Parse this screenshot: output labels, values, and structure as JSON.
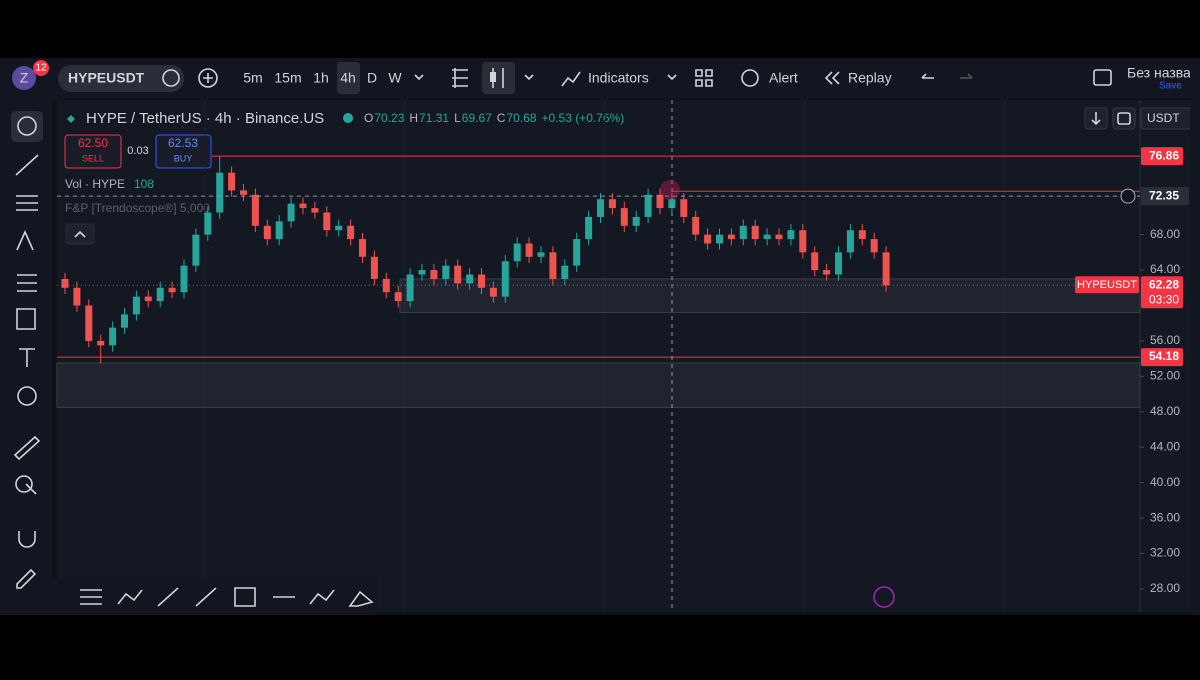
{
  "toolbar": {
    "avatar": "Z",
    "badge": "12",
    "symbol": "HYPEUSDT",
    "intervals": [
      "5m",
      "15m",
      "1h",
      "4h",
      "D",
      "W"
    ],
    "indicators": "Indicators",
    "alert": "Alert",
    "replay": "Replay",
    "layout_name": "Без названи",
    "save": "Save"
  },
  "legend": {
    "title": "HYPE / TetherUS · 4h · Binance.US",
    "ohlc": [
      {
        "key": "O",
        "value": "70.23"
      },
      {
        "key": "H",
        "value": "71.31"
      },
      {
        "key": "L",
        "value": "69.67"
      },
      {
        "key": "C",
        "value": "70.68"
      }
    ],
    "change": "+0.53 (+0.76%)",
    "sell_price": "62.50",
    "sell": "SELL",
    "spread": "0.03",
    "buy_price": "62.53",
    "buy": "BUY",
    "volume_label": "Vol · HYPE",
    "volume": "108",
    "indicator": "F&P [Trendoscope®] 5,000"
  },
  "currency": "USDT",
  "chart_data": {
    "type": "candlestick",
    "ylim": [
      25.4,
      83.2
    ],
    "yticks": [
      {
        "value": 28,
        "label": "28.00"
      },
      {
        "value": 32,
        "label": "32.00"
      },
      {
        "value": 36,
        "label": "36.00"
      },
      {
        "value": 40,
        "label": "40.00"
      },
      {
        "value": 44,
        "label": "44.00"
      },
      {
        "value": 48,
        "label": "48.00"
      },
      {
        "value": 52,
        "label": "52.00"
      },
      {
        "value": 56,
        "label": "56.00"
      },
      {
        "value": 64,
        "label": "64.00"
      },
      {
        "value": 68,
        "label": "68.00"
      }
    ],
    "up_color": "#26a69a",
    "down_color": "#ef5350",
    "open": [
      63,
      62,
      60,
      56,
      55.5,
      57.5,
      59,
      61,
      60.5,
      62,
      61.5,
      64.5,
      68,
      70.5,
      75,
      73,
      72.5,
      69,
      67.5,
      69.5,
      71.5,
      71,
      70.5,
      68.5,
      69,
      67.5,
      65.5,
      63,
      61.5,
      60.5,
      63.5,
      64,
      63,
      64.5,
      62.5,
      63.5,
      62,
      61,
      65,
      67,
      65.5,
      66,
      63,
      64.5,
      67.5,
      70,
      72,
      71,
      69,
      70,
      72.5,
      71,
      72,
      70,
      68,
      67,
      68,
      67.5,
      69,
      67.5,
      68,
      67.5,
      68.5,
      66,
      64,
      63.5,
      66,
      68.5,
      67.5,
      66
    ],
    "high": [
      63.7,
      62.7,
      60.7,
      56.7,
      58.2,
      59.7,
      61.7,
      61.7,
      62.7,
      62.7,
      65.2,
      68.7,
      71.2,
      76.86,
      75.7,
      73.7,
      73.2,
      69.7,
      70.2,
      72.2,
      72.2,
      71.7,
      71.2,
      69.7,
      69.7,
      68.2,
      66.2,
      63.7,
      62.2,
      64.2,
      64.7,
      64.7,
      65.2,
      65.2,
      64.2,
      64.2,
      62.7,
      65.7,
      67.7,
      67.7,
      66.7,
      66.7,
      65.2,
      68.2,
      70.7,
      72.7,
      72.7,
      71.7,
      70.7,
      73.2,
      73.2,
      72.7,
      72.7,
      70.7,
      68.7,
      68.7,
      68.7,
      69.7,
      69.7,
      68.7,
      68.7,
      69.2,
      69.2,
      66.7,
      64.7,
      66.7,
      69.2,
      69.2,
      68.2,
      66.7
    ],
    "low": [
      61.3,
      59.3,
      55.3,
      53.5,
      54.8,
      56.8,
      58.3,
      59.8,
      59.8,
      60.8,
      60.8,
      63.8,
      67.3,
      69.8,
      72.3,
      71.8,
      68.3,
      66.8,
      66.8,
      68.8,
      70.3,
      69.8,
      67.8,
      67.8,
      66.8,
      64.8,
      62.3,
      60.8,
      59.8,
      59.8,
      62.8,
      62.3,
      62.3,
      61.8,
      61.8,
      61.3,
      60.3,
      60.3,
      64.3,
      64.8,
      64.8,
      62.3,
      62.3,
      63.8,
      66.8,
      69.3,
      70.3,
      68.3,
      68.3,
      69.3,
      70.3,
      70.3,
      69.3,
      67.3,
      66.3,
      66.3,
      66.8,
      66.8,
      66.8,
      66.8,
      66.8,
      66.8,
      65.3,
      63.3,
      62.8,
      62.8,
      65.3,
      66.8,
      65.3,
      61.58
    ],
    "close": [
      62,
      60,
      56,
      55.5,
      57.5,
      59,
      61,
      60.5,
      62,
      61.5,
      64.5,
      68,
      70.5,
      75,
      73,
      72.5,
      69,
      67.5,
      69.5,
      71.5,
      71,
      70.5,
      68.5,
      69,
      67.5,
      65.5,
      63,
      61.5,
      60.5,
      63.5,
      64,
      63,
      64.5,
      62.5,
      63.5,
      62,
      61,
      65,
      67,
      65.5,
      66,
      63,
      64.5,
      67.5,
      70,
      72,
      71,
      69,
      70,
      72.5,
      71,
      72,
      70,
      68,
      67,
      68,
      67.5,
      69,
      67.5,
      68,
      67.5,
      68.5,
      66,
      64,
      63.5,
      66,
      68.5,
      67.5,
      66,
      62.28
    ],
    "levels": [
      76.86,
      54.18
    ],
    "alert_line": 72.9,
    "zones": [
      [
        59.2,
        63
      ],
      [
        48.5,
        53.5
      ]
    ],
    "crosshair_price": 72.35,
    "last_price_symbol": "HYPEUSDT",
    "last_price": 62.28,
    "countdown": "03:30"
  }
}
